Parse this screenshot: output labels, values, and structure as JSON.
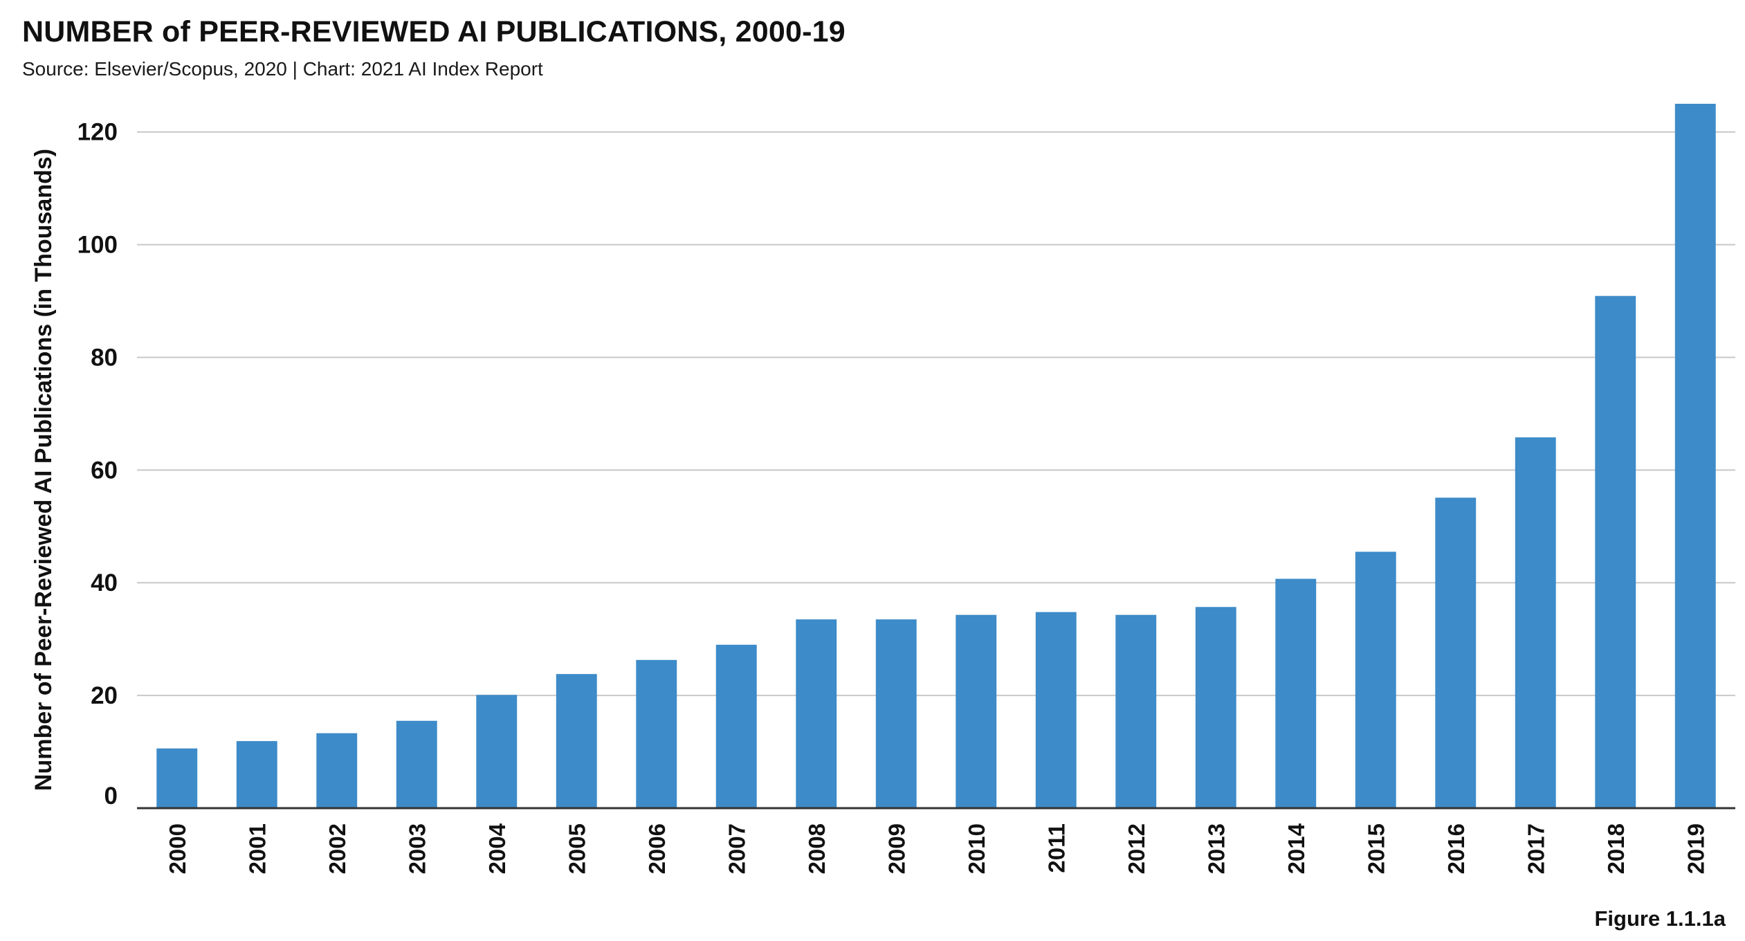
{
  "chart_data": {
    "type": "bar",
    "title": "NUMBER of PEER-REVIEWED AI PUBLICATIONS, 2000-19",
    "subtitle": "Source: Elsevier/Scopus, 2020 | Chart: 2021 AI Index Report",
    "ylabel": "Number of Peer-Reviewed AI Publications (in Thousands)",
    "xlabel": "",
    "categories": [
      "2000",
      "2001",
      "2002",
      "2003",
      "2004",
      "2005",
      "2006",
      "2007",
      "2008",
      "2009",
      "2010",
      "2011",
      "2012",
      "2013",
      "2014",
      "2015",
      "2016",
      "2017",
      "2018",
      "2019"
    ],
    "values": [
      10.6,
      11.9,
      13.3,
      15.5,
      20.1,
      23.8,
      26.3,
      29.0,
      33.5,
      33.5,
      34.3,
      34.8,
      34.3,
      35.7,
      40.7,
      45.5,
      55.1,
      65.8,
      90.9,
      125.0
    ],
    "yticks": [
      0,
      20,
      40,
      60,
      80,
      100,
      120
    ],
    "ylim": [
      0,
      125
    ],
    "grid": true,
    "bar_color": "#3d8bc9",
    "figure_label": "Figure 1.1.1a"
  }
}
